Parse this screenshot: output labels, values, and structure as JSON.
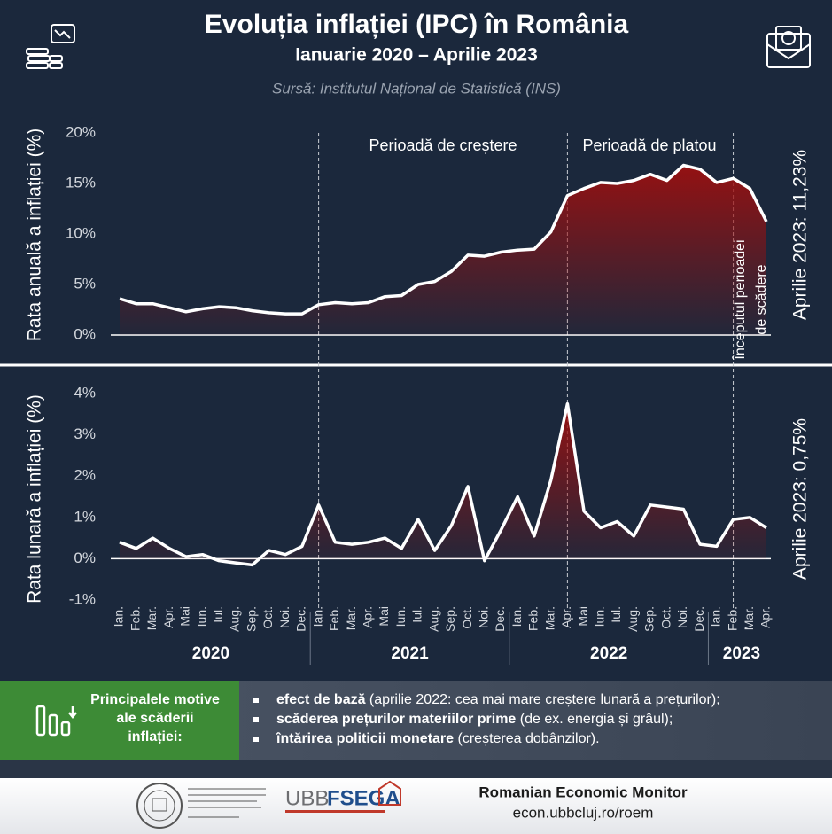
{
  "header": {
    "title": "Evoluția inflației (IPC) în România",
    "subtitle": "Ianuarie 2020 – Aprilie 2023",
    "source": "Sursă:  Institutul Național de Statistică (INS)"
  },
  "chart_data": [
    {
      "type": "area-line",
      "y_label": "Rata anuală a inflației (%)",
      "side_label": "Aprilie 2023: 11,23%",
      "color": "#ffffff",
      "fill": "#9b1010",
      "ylim": [
        0,
        20
      ],
      "yticks": [
        {
          "value": 0,
          "label": "0%"
        },
        {
          "value": 5,
          "label": "5%"
        },
        {
          "value": 10,
          "label": "10%"
        },
        {
          "value": 15,
          "label": "15%"
        },
        {
          "value": 20,
          "label": "20%"
        }
      ],
      "values": [
        3.6,
        3.1,
        3.1,
        2.7,
        2.3,
        2.6,
        2.8,
        2.7,
        2.4,
        2.2,
        2.1,
        2.1,
        3.0,
        3.2,
        3.1,
        3.2,
        3.8,
        3.9,
        5.0,
        5.3,
        6.3,
        7.9,
        7.8,
        8.2,
        8.4,
        8.5,
        10.2,
        13.8,
        14.5,
        15.1,
        15.0,
        15.3,
        15.9,
        15.3,
        16.8,
        16.4,
        15.1,
        15.5,
        14.5,
        11.23
      ],
      "annotations": [
        {
          "lines": [
            "Perioadă de creștere"
          ]
        },
        {
          "lines": [
            "Perioadă de platou"
          ]
        },
        {
          "lines": [
            "Începutul perioadei",
            "de scădere"
          ]
        }
      ]
    },
    {
      "type": "area-line",
      "y_label": "Rata lunară a inflației (%)",
      "side_label": "Aprilie 2023: 0,75%",
      "color": "#ffffff",
      "fill": "#9b1010",
      "ylim": [
        -1,
        4
      ],
      "yticks": [
        {
          "value": -1,
          "label": "-1%"
        },
        {
          "value": 0,
          "label": "0%"
        },
        {
          "value": 1,
          "label": "1%"
        },
        {
          "value": 2,
          "label": "2%"
        },
        {
          "value": 3,
          "label": "3%"
        },
        {
          "value": 4,
          "label": "4%"
        }
      ],
      "categories": [
        "Ian.",
        "Feb.",
        "Mar.",
        "Apr.",
        "Mai",
        "Iun.",
        "Iul.",
        "Aug.",
        "Sep.",
        "Oct.",
        "Noi.",
        "Dec.",
        "Ian.",
        "Feb.",
        "Mar.",
        "Apr.",
        "Mai",
        "Iun.",
        "Iul.",
        "Aug.",
        "Sep.",
        "Oct.",
        "Noi.",
        "Dec.",
        "Ian.",
        "Feb.",
        "Mar.",
        "Apr.",
        "Mai",
        "Iun.",
        "Iul.",
        "Aug.",
        "Sep.",
        "Oct.",
        "Noi.",
        "Dec.",
        "Ian.",
        "Feb.",
        "Mar.",
        "Apr."
      ],
      "years": [
        "2020",
        "2021",
        "2022",
        "2023"
      ],
      "values": [
        0.4,
        0.25,
        0.5,
        0.25,
        0.05,
        0.1,
        -0.05,
        -0.1,
        -0.15,
        0.2,
        0.1,
        0.3,
        1.3,
        0.4,
        0.35,
        0.4,
        0.5,
        0.25,
        0.95,
        0.2,
        0.8,
        1.75,
        -0.05,
        0.7,
        1.5,
        0.55,
        1.9,
        3.75,
        1.15,
        0.75,
        0.9,
        0.55,
        1.3,
        1.25,
        1.2,
        0.35,
        0.3,
        0.95,
        1.0,
        0.75
      ]
    }
  ],
  "reasons": {
    "title_lines": [
      "Principalele motive",
      "ale scăderii",
      "inflației:"
    ],
    "bullets": [
      {
        "bold": "efect de bază",
        "text": " (aprilie 2022: cea mai mare creștere lunară a prețurilor);"
      },
      {
        "bold": "scăderea prețurilor materiilor prime",
        "text": " (de ex. energia și grâul);"
      },
      {
        "bold": "întărirea politicii monetare",
        "text": " (creșterea dobânzilor)."
      }
    ]
  },
  "footer": {
    "logo_ubb": "UBB",
    "logo_fsega": "FSEGA",
    "monitor": "Romanian Economic Monitor",
    "url": "econ.ubbcluj.ro/roem"
  }
}
